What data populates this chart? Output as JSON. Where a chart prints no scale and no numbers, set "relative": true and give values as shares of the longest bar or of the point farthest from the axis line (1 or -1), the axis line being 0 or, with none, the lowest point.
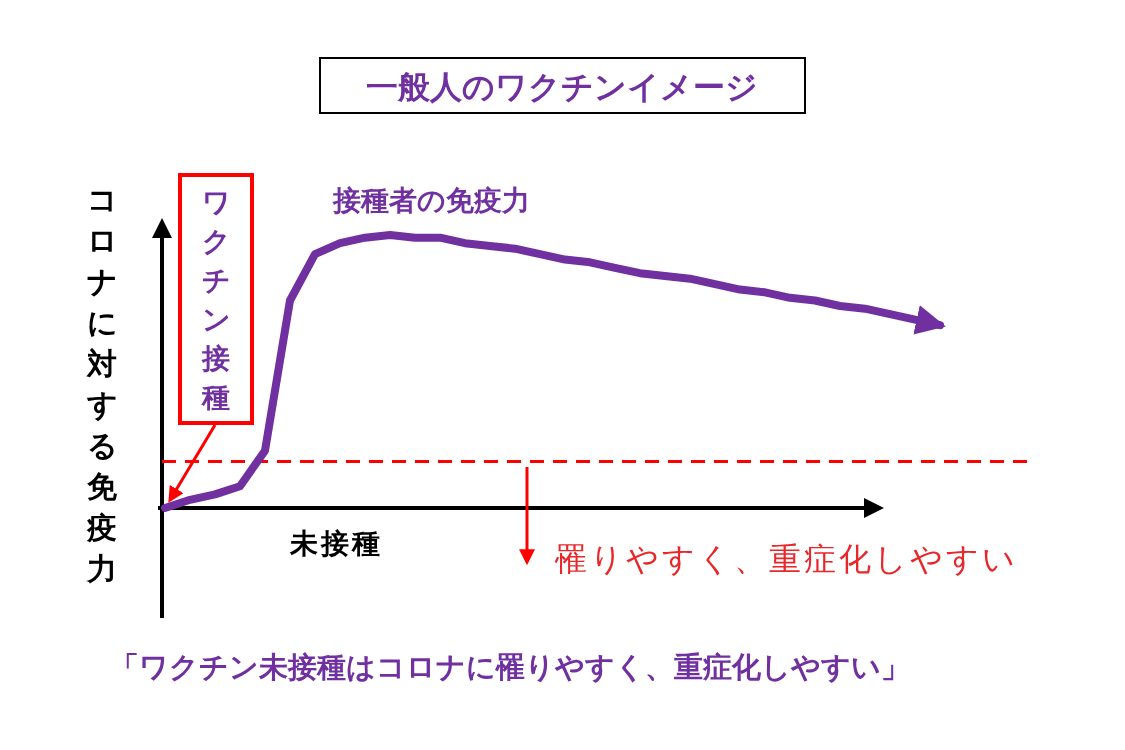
{
  "chart_data": {
    "type": "line",
    "title": "一般人のワクチンイメージ",
    "ylabel": "コロナに対する免疫力",
    "relative": true,
    "categories": [
      null,
      null,
      null,
      null,
      null,
      null,
      null,
      null,
      null,
      null,
      null,
      null,
      null,
      null,
      null,
      null,
      null,
      null,
      null,
      null,
      null,
      null,
      null,
      null,
      null,
      null,
      null,
      null,
      null,
      null,
      null,
      null
    ],
    "series": [
      {
        "name": "接種者の免疫力",
        "color": "#7030a0",
        "values": [
          0,
          0.03,
          0.05,
          0.08,
          0.21,
          0.76,
          0.93,
          0.97,
          0.99,
          1,
          0.99,
          0.99,
          0.97,
          0.96,
          0.95,
          0.93,
          0.91,
          0.9,
          0.88,
          0.86,
          0.85,
          0.84,
          0.82,
          0.8,
          0.79,
          0.77,
          0.76,
          0.74,
          0.73,
          0.71,
          0.69,
          0.67
        ]
      }
    ],
    "ref_lines": [
      {
        "axis": "y",
        "value": 0.17,
        "color": "#ff0000",
        "line_style": "dashed"
      }
    ],
    "annotations": [
      "ワクチン接種",
      "未接種",
      "罹りやすく、重症化しやすい",
      "「ワクチン未接種はコロナに罹りやすく、重症化しやすい」"
    ]
  }
}
